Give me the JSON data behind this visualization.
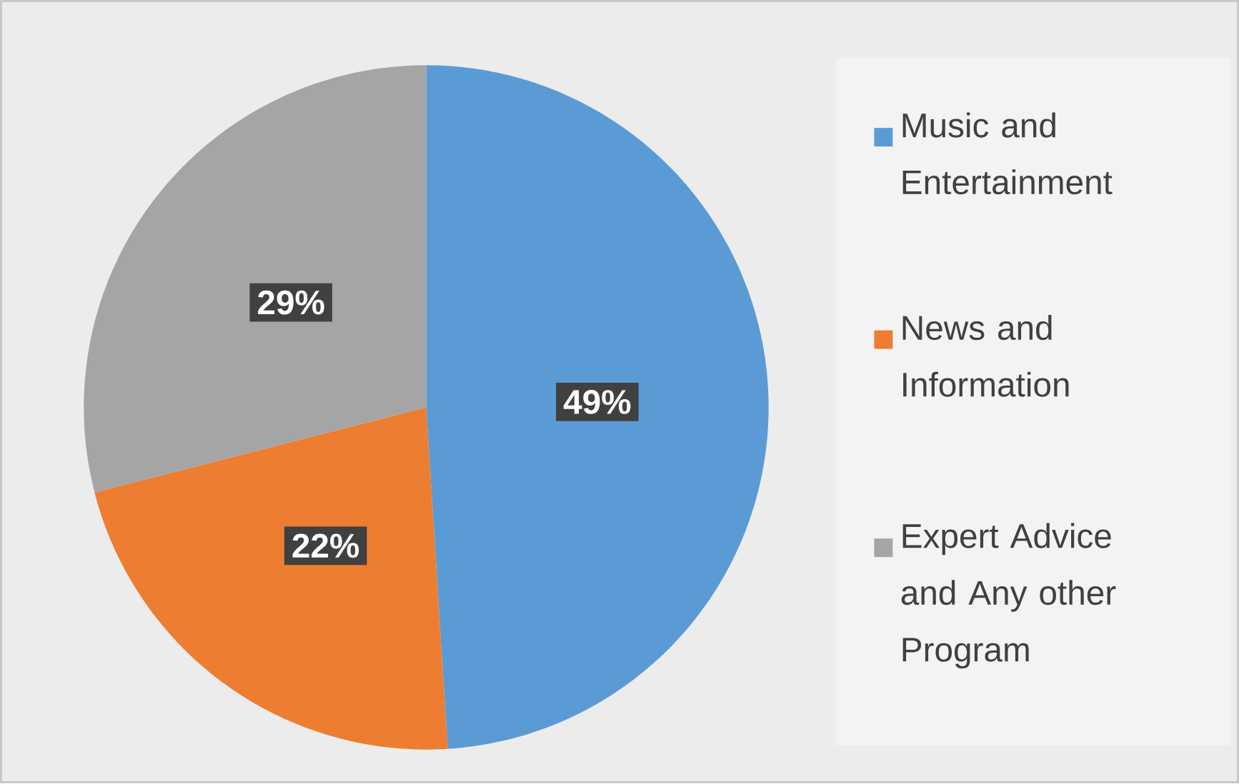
{
  "chart_data": {
    "type": "pie",
    "categories": [
      "Music and Entertainment",
      "News and Information",
      "Expert Advice and Any other Program"
    ],
    "values": [
      49,
      22,
      29
    ],
    "value_labels": [
      "49%",
      "22%",
      "29%"
    ],
    "colors": [
      "#5b9bd5",
      "#ed7d31",
      "#a5a5a5"
    ],
    "legend": "right"
  }
}
